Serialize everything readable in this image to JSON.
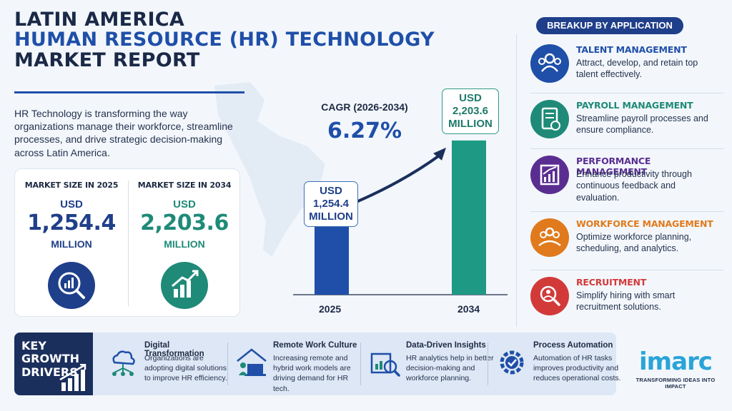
{
  "title": {
    "line1": "LATIN AMERICA",
    "line2": "HUMAN RESOURCE (HR) TECHNOLOGY",
    "line3": "MARKET REPORT"
  },
  "intro": "HR Technology is transforming the way organizations manage their workforce, streamline processes, and drive strategic decision-making across Latin America.",
  "market_size": {
    "y2025": {
      "label": "MARKET SIZE IN 2025",
      "currency": "USD",
      "value": "1,254.4",
      "unit": "MILLION",
      "icon": "magnifier-chart-icon"
    },
    "y2034": {
      "label": "MARKET SIZE IN 2034",
      "currency": "USD",
      "value": "2,203.6",
      "unit": "MILLION",
      "icon": "growth-bars-icon"
    }
  },
  "cagr": {
    "label": "CAGR (2026-2034)",
    "value": "6.27%"
  },
  "chart_data": {
    "type": "bar",
    "categories": [
      "2025",
      "2034"
    ],
    "values": [
      1254.4,
      2203.6
    ],
    "value_labels": [
      {
        "currency": "USD",
        "value": "1,254.4",
        "unit": "MILLION"
      },
      {
        "currency": "USD",
        "value": "2,203.6",
        "unit": "MILLION"
      }
    ],
    "colors": [
      "#1f4fa8",
      "#1e9a84"
    ],
    "ylim": [
      0,
      2600
    ],
    "grid": false
  },
  "breakup": {
    "heading": "BREAKUP BY APPLICATION",
    "items": [
      {
        "title": "TALENT MANAGEMENT",
        "desc": "Attract, develop, and retain top talent effectively.",
        "color": "#1f4fa8",
        "icon": "people-icon"
      },
      {
        "title": "PAYROLL MANAGEMENT",
        "desc": "Streamline payroll processes and ensure compliance.",
        "color": "#1e8a77",
        "icon": "payroll-document-icon"
      },
      {
        "title": "PERFORMANCE MANAGEMENT",
        "desc": "Enhance productivity through continuous feedback and evaluation.",
        "color": "#5a2e91",
        "icon": "performance-chart-icon"
      },
      {
        "title": "WORKFORCE MANAGEMENT",
        "desc": "Optimize workforce planning, scheduling, and analytics.",
        "color": "#e07a1c",
        "icon": "team-icon"
      },
      {
        "title": "RECRUITMENT",
        "desc": "Simplify hiring with smart recruitment solutions.",
        "color": "#d23a3a",
        "icon": "search-person-icon"
      }
    ]
  },
  "drivers": {
    "heading": "KEY GROWTH DRIVERS",
    "items": [
      {
        "title": "Digital Transformation",
        "desc": "Organizations are adopting digital solutions to improve HR efficiency.",
        "icon": "cloud-network-icon"
      },
      {
        "title": "Remote Work Culture",
        "desc": "Increasing remote and hybrid work models are driving demand for HR tech.",
        "icon": "home-laptop-icon"
      },
      {
        "title": "Data-Driven Insights",
        "desc": "HR analytics help in better decision-making and workforce planning.",
        "icon": "analytics-magnifier-icon"
      },
      {
        "title": "Process Automation",
        "desc": "Automation of HR tasks improves productivity and reduces operational costs.",
        "icon": "gear-check-icon"
      }
    ]
  },
  "brand": {
    "logo": "imarc",
    "tagline": "TRANSFORMING IDEAS INTO IMPACT"
  }
}
